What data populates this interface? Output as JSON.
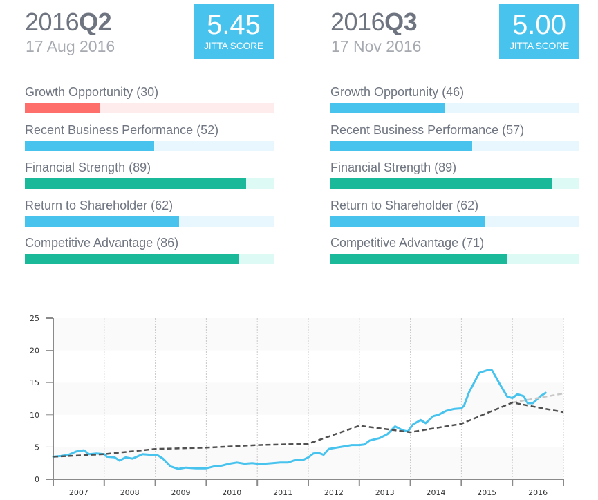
{
  "colors": {
    "blue": "#47c3ee",
    "blue_track": "#e8f6fd",
    "green": "#1ab99a",
    "green_track": "#ddfbf4",
    "red": "#fe6f6c",
    "red_track": "#fdeceb",
    "text": "#6f7580",
    "muted": "#a6aab0",
    "price_line": "#47c3ee",
    "line_dashed": "#505050",
    "line_projection": "#c8c8c8"
  },
  "panels": [
    {
      "quarter_year": "2016",
      "quarter_q": "Q2",
      "date": "17 Aug 2016",
      "score": "5.45",
      "score_label": "JITTA SCORE",
      "metrics": [
        {
          "label": "Growth Opportunity (30)",
          "value": 30,
          "color": "red"
        },
        {
          "label": "Recent Business Performance (52)",
          "value": 52,
          "color": "blue"
        },
        {
          "label": "Financial Strength (89)",
          "value": 89,
          "color": "green"
        },
        {
          "label": "Return to Shareholder (62)",
          "value": 62,
          "color": "blue"
        },
        {
          "label": "Competitive Advantage (86)",
          "value": 86,
          "color": "green"
        }
      ]
    },
    {
      "quarter_year": "2016",
      "quarter_q": "Q3",
      "date": "17 Nov 2016",
      "score": "5.00",
      "score_label": "JITTA SCORE",
      "metrics": [
        {
          "label": "Growth Opportunity (46)",
          "value": 46,
          "color": "blue"
        },
        {
          "label": "Recent Business Performance (57)",
          "value": 57,
          "color": "blue"
        },
        {
          "label": "Financial Strength (89)",
          "value": 89,
          "color": "green"
        },
        {
          "label": "Return to Shareholder (62)",
          "value": 62,
          "color": "blue"
        },
        {
          "label": "Competitive Advantage (71)",
          "value": 71,
          "color": "green"
        }
      ]
    }
  ],
  "chart_data": {
    "type": "line",
    "title": "",
    "xlabel": "",
    "ylabel": "",
    "xlim": [
      2007.0,
      2017.0
    ],
    "ylim": [
      0,
      25
    ],
    "yticks": [
      0,
      5,
      10,
      15,
      20,
      25
    ],
    "xtick_labels": [
      "2007",
      "2008",
      "2009",
      "2010",
      "2011",
      "2012",
      "2013",
      "2014",
      "2015",
      "2016"
    ],
    "grid": "vertical dotted year dividers, alternating horizontal bands",
    "legend": "none",
    "series": [
      {
        "name": "price",
        "style": "solid",
        "color_key": "price_line",
        "points": [
          [
            2007.0,
            3.5
          ],
          [
            2007.15,
            3.6
          ],
          [
            2007.3,
            3.8
          ],
          [
            2007.45,
            4.3
          ],
          [
            2007.6,
            4.5
          ],
          [
            2007.7,
            3.9
          ],
          [
            2007.85,
            4.0
          ],
          [
            2008.0,
            3.9
          ],
          [
            2008.05,
            3.5
          ],
          [
            2008.2,
            3.4
          ],
          [
            2008.3,
            2.9
          ],
          [
            2008.42,
            3.4
          ],
          [
            2008.55,
            3.2
          ],
          [
            2008.75,
            3.9
          ],
          [
            2008.9,
            3.8
          ],
          [
            2009.05,
            3.7
          ],
          [
            2009.15,
            3.2
          ],
          [
            2009.3,
            2.0
          ],
          [
            2009.45,
            1.6
          ],
          [
            2009.6,
            1.8
          ],
          [
            2009.8,
            1.7
          ],
          [
            2010.0,
            1.7
          ],
          [
            2010.15,
            2.0
          ],
          [
            2010.3,
            2.1
          ],
          [
            2010.45,
            2.4
          ],
          [
            2010.6,
            2.6
          ],
          [
            2010.75,
            2.4
          ],
          [
            2010.9,
            2.5
          ],
          [
            2011.0,
            2.4
          ],
          [
            2011.15,
            2.4
          ],
          [
            2011.3,
            2.5
          ],
          [
            2011.45,
            2.6
          ],
          [
            2011.6,
            2.6
          ],
          [
            2011.75,
            3.0
          ],
          [
            2011.9,
            3.0
          ],
          [
            2012.0,
            3.4
          ],
          [
            2012.1,
            4.0
          ],
          [
            2012.2,
            4.1
          ],
          [
            2012.3,
            3.8
          ],
          [
            2012.4,
            4.7
          ],
          [
            2012.55,
            4.9
          ],
          [
            2012.7,
            5.1
          ],
          [
            2012.85,
            5.3
          ],
          [
            2013.0,
            5.3
          ],
          [
            2013.1,
            5.4
          ],
          [
            2013.2,
            6.0
          ],
          [
            2013.4,
            6.4
          ],
          [
            2013.55,
            7.0
          ],
          [
            2013.7,
            8.2
          ],
          [
            2013.85,
            7.6
          ],
          [
            2013.95,
            7.4
          ],
          [
            2014.05,
            8.5
          ],
          [
            2014.2,
            9.2
          ],
          [
            2014.3,
            8.7
          ],
          [
            2014.45,
            9.8
          ],
          [
            2014.55,
            10.0
          ],
          [
            2014.7,
            10.6
          ],
          [
            2014.85,
            10.9
          ],
          [
            2015.0,
            11.0
          ],
          [
            2015.05,
            11.4
          ],
          [
            2015.15,
            13.5
          ],
          [
            2015.35,
            16.5
          ],
          [
            2015.5,
            16.9
          ],
          [
            2015.6,
            16.9
          ],
          [
            2015.75,
            14.8
          ],
          [
            2015.9,
            12.8
          ],
          [
            2016.0,
            12.6
          ],
          [
            2016.1,
            13.2
          ],
          [
            2016.22,
            12.9
          ],
          [
            2016.3,
            11.8
          ],
          [
            2016.4,
            11.8
          ],
          [
            2016.55,
            12.9
          ],
          [
            2016.65,
            13.4
          ]
        ]
      },
      {
        "name": "jitta_line",
        "style": "dashed",
        "color_key": "line_dashed",
        "points": [
          [
            2007.0,
            3.5
          ],
          [
            2007.3,
            3.6
          ],
          [
            2008.0,
            3.9
          ],
          [
            2009.0,
            4.7
          ],
          [
            2010.0,
            4.9
          ],
          [
            2011.0,
            5.3
          ],
          [
            2012.0,
            5.5
          ],
          [
            2013.0,
            8.3
          ],
          [
            2014.0,
            7.3
          ],
          [
            2015.0,
            8.6
          ],
          [
            2016.0,
            11.9
          ],
          [
            2017.0,
            10.4
          ]
        ]
      },
      {
        "name": "jitta_line_projection",
        "style": "dashed",
        "color_key": "line_projection",
        "points": [
          [
            2016.0,
            11.9
          ],
          [
            2017.0,
            13.3
          ]
        ]
      }
    ]
  }
}
